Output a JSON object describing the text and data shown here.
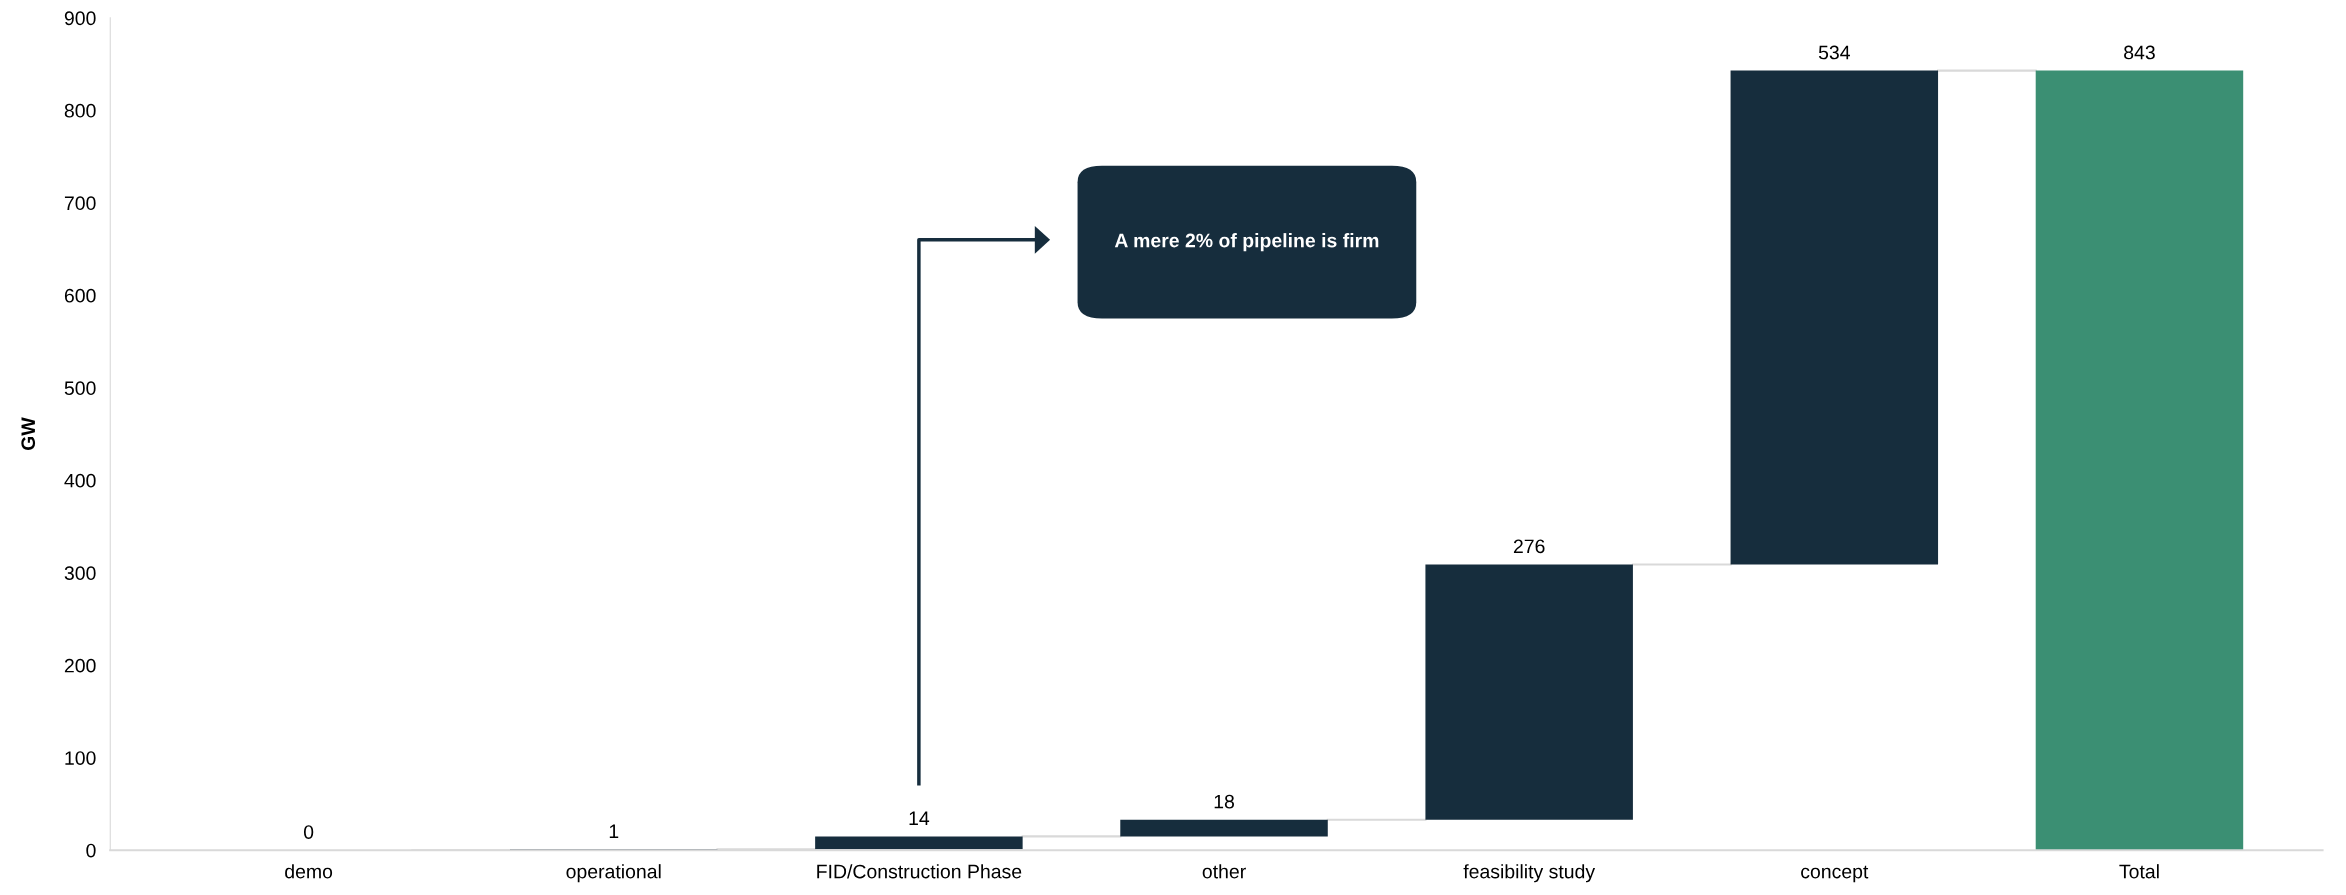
{
  "chart_data": {
    "type": "bar",
    "ylabel": "GW",
    "categories": [
      "demo",
      "operational",
      "FID/Construction Phase",
      "other",
      "feasibility study",
      "concept",
      "Total"
    ],
    "values": [
      0,
      1,
      14,
      18,
      276,
      534,
      843
    ],
    "base": [
      null,
      0,
      1,
      15,
      33,
      309,
      0
    ],
    "colors": [
      "#162d3d",
      "#162d3d",
      "#162d3d",
      "#162d3d",
      "#162d3d",
      "#162d3d",
      "#3b8f73"
    ],
    "data_labels": true,
    "ylim": [
      0,
      900
    ],
    "yticks": [
      0,
      100,
      200,
      300,
      400,
      500,
      600,
      700,
      800,
      900
    ],
    "grid": false,
    "annotations": [
      "A mere 2% of pipeline is firm"
    ]
  }
}
